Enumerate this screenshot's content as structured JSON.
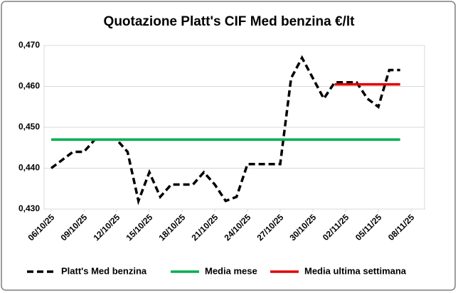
{
  "chart_data": {
    "type": "line",
    "title": "Quotazione Platt's CIF Med benzina €/lt",
    "x": [
      "06/10/25",
      "07/10/25",
      "08/10/25",
      "09/10/25",
      "10/10/25",
      "11/10/25",
      "12/10/25",
      "13/10/25",
      "14/10/25",
      "15/10/25",
      "16/10/25",
      "17/10/25",
      "18/10/25",
      "19/10/25",
      "20/10/25",
      "21/10/25",
      "22/10/25",
      "23/10/25",
      "24/10/25",
      "25/10/25",
      "26/10/25",
      "27/10/25",
      "28/10/25",
      "29/10/25",
      "30/10/25",
      "31/10/25",
      "01/11/25",
      "02/11/25",
      "03/11/25",
      "04/11/25",
      "05/11/25",
      "06/11/25",
      "07/11/25"
    ],
    "series": [
      {
        "name": "Platt's Med benzina",
        "color": "#000000",
        "dash": true,
        "values": [
          0.44,
          0.442,
          0.444,
          0.444,
          0.447,
          0.447,
          0.447,
          0.444,
          0.432,
          0.439,
          0.433,
          0.436,
          0.436,
          0.436,
          0.439,
          0.436,
          0.432,
          0.433,
          0.441,
          0.441,
          0.441,
          0.441,
          0.462,
          0.467,
          0.462,
          0.457,
          0.461,
          0.461,
          0.461,
          0.457,
          0.455,
          0.464,
          0.464
        ]
      },
      {
        "name": "Media mese",
        "color": "#00b050",
        "dash": false,
        "values": [
          0.447,
          0.447,
          0.447,
          0.447,
          0.447,
          0.447,
          0.447,
          0.447,
          0.447,
          0.447,
          0.447,
          0.447,
          0.447,
          0.447,
          0.447,
          0.447,
          0.447,
          0.447,
          0.447,
          0.447,
          0.447,
          0.447,
          0.447,
          0.447,
          0.447,
          0.447,
          0.447,
          0.447,
          0.447,
          0.447,
          0.447,
          0.447,
          0.447
        ]
      },
      {
        "name": "Media ultima settimana",
        "color": "#e00000",
        "dash": false,
        "values": [
          null,
          null,
          null,
          null,
          null,
          null,
          null,
          null,
          null,
          null,
          null,
          null,
          null,
          null,
          null,
          null,
          null,
          null,
          null,
          null,
          null,
          null,
          null,
          null,
          null,
          null,
          0.4605,
          0.4605,
          0.4605,
          0.4605,
          0.4605,
          0.4605,
          0.4605
        ]
      }
    ],
    "xlim": [
      "06/10/25",
      "08/11/25"
    ],
    "xticks": [
      "06/10/25",
      "09/10/25",
      "12/10/25",
      "15/10/25",
      "18/10/25",
      "21/10/25",
      "24/10/25",
      "27/10/25",
      "30/10/25",
      "02/11/25",
      "05/11/25",
      "08/11/25"
    ],
    "ylim": [
      0.43,
      0.47
    ],
    "yticks": [
      {
        "value": 0.43,
        "label": "0,430"
      },
      {
        "value": 0.44,
        "label": "0,440"
      },
      {
        "value": 0.45,
        "label": "0,450"
      },
      {
        "value": 0.46,
        "label": "0,460"
      },
      {
        "value": 0.47,
        "label": "0,470"
      }
    ],
    "grid": true
  }
}
